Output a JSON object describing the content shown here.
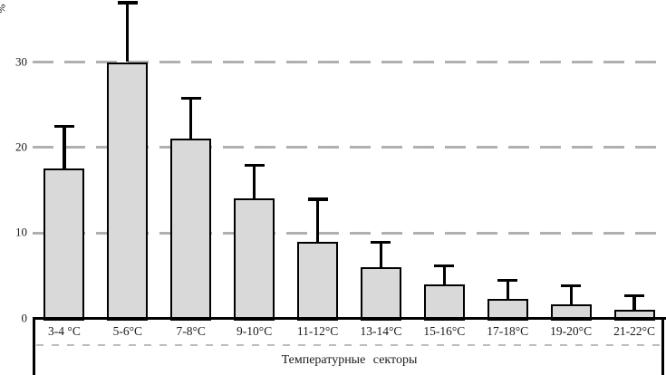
{
  "chart_data": {
    "type": "bar",
    "title": "",
    "ylabel": "%",
    "xlabel": "Температурные секторы",
    "categories": [
      "3-4 °C",
      "5-6°C",
      "7-8°C",
      "9-10°C",
      "11-12°C",
      "13-14°C",
      "15-16°C",
      "17-18°C",
      "19-20°C",
      "21-22°C"
    ],
    "values": [
      17.5,
      30,
      21,
      14,
      9,
      6,
      4,
      2.3,
      1.6,
      1
    ],
    "error_up": [
      5,
      7,
      4.8,
      4,
      5,
      3,
      2.2,
      2.2,
      2.3,
      1.7
    ],
    "yticks": [
      0,
      10,
      20,
      30
    ],
    "ylim": [
      0,
      37.3
    ],
    "grid": "horizontal-dashed",
    "legend": "none",
    "colors": {
      "bar_fill": "#d9d9d9",
      "bar_border": "#000000",
      "gridline": "#b0b0b0",
      "text": "#1a1a1a"
    }
  }
}
